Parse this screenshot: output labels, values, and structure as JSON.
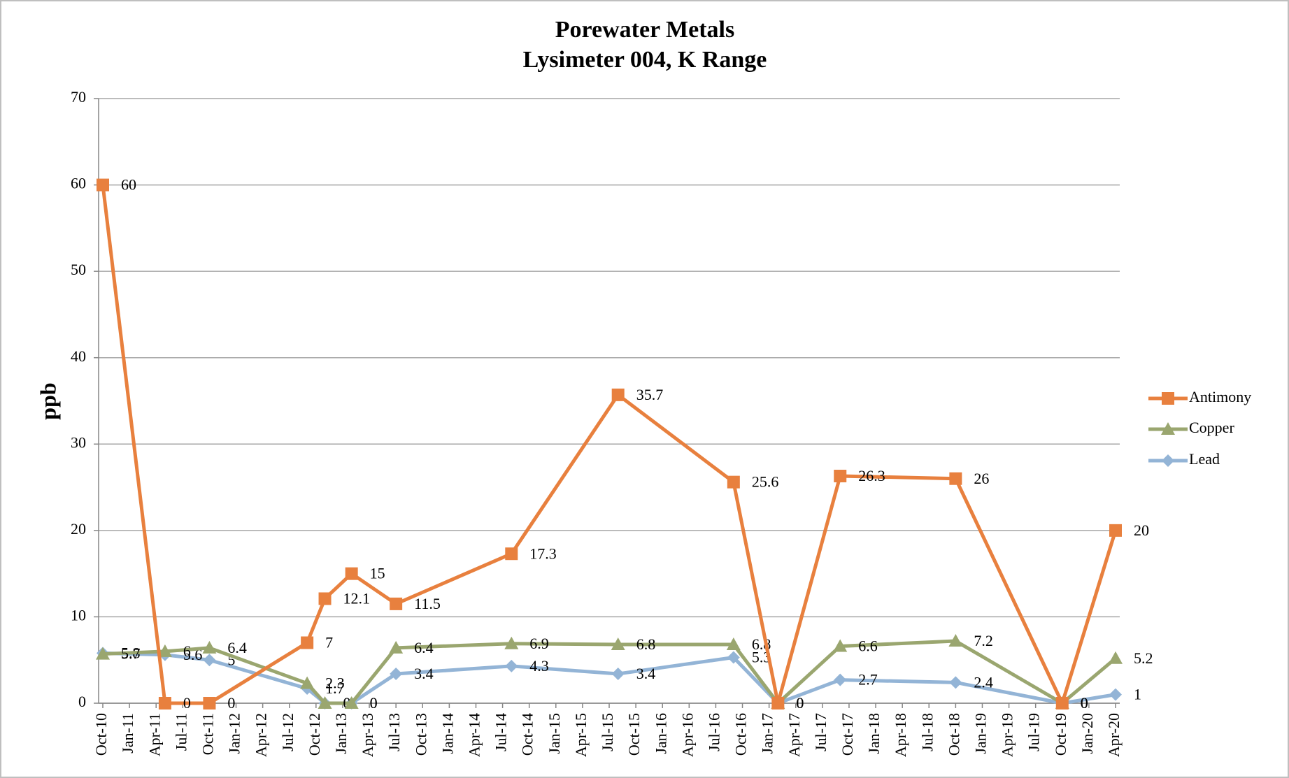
{
  "chart_data": {
    "type": "line",
    "title": [
      "Porewater Metals",
      "Lysimeter 004, K Range"
    ],
    "y_label": "ppb",
    "x": [
      "2010-10",
      "2011-05",
      "2011-10",
      "2012-09",
      "2012-11",
      "2013-02",
      "2013-07",
      "2014-08",
      "2015-08",
      "2016-09",
      "2017-02",
      "2017-09",
      "2018-10",
      "2019-10",
      "2020-04"
    ],
    "series": [
      {
        "name": "Antimony",
        "color": "#e8803e",
        "marker": "square",
        "values": [
          60,
          0,
          0,
          7,
          12.1,
          15,
          11.5,
          17.3,
          35.7,
          25.6,
          0,
          26.3,
          26,
          0,
          20
        ]
      },
      {
        "name": "Copper",
        "color": "#9aa66f",
        "marker": "triangle",
        "values": [
          5.7,
          6,
          6.4,
          2.3,
          0,
          0,
          6.4,
          6.9,
          6.8,
          6.8,
          0,
          6.6,
          7.2,
          0,
          5.2
        ]
      },
      {
        "name": "Lead",
        "color": "#93b4d6",
        "marker": "diamond",
        "values": [
          5.8,
          5.6,
          5,
          1.7,
          0,
          0,
          3.4,
          4.3,
          3.4,
          5.3,
          0,
          2.7,
          2.4,
          0,
          1
        ]
      }
    ],
    "xlim": [
      "2010-10",
      "2020-04"
    ],
    "xticks": [
      {
        "value": "2010-10",
        "label": "Oct-10"
      },
      {
        "value": "2011-01",
        "label": "Jan-11"
      },
      {
        "value": "2011-04",
        "label": "Apr-11"
      },
      {
        "value": "2011-07",
        "label": "Jul-11"
      },
      {
        "value": "2011-10",
        "label": "Oct-11"
      },
      {
        "value": "2012-01",
        "label": "Jan-12"
      },
      {
        "value": "2012-04",
        "label": "Apr-12"
      },
      {
        "value": "2012-07",
        "label": "Jul-12"
      },
      {
        "value": "2012-10",
        "label": "Oct-12"
      },
      {
        "value": "2013-01",
        "label": "Jan-13"
      },
      {
        "value": "2013-04",
        "label": "Apr-13"
      },
      {
        "value": "2013-07",
        "label": "Jul-13"
      },
      {
        "value": "2013-10",
        "label": "Oct-13"
      },
      {
        "value": "2014-01",
        "label": "Jan-14"
      },
      {
        "value": "2014-04",
        "label": "Apr-14"
      },
      {
        "value": "2014-07",
        "label": "Jul-14"
      },
      {
        "value": "2014-10",
        "label": "Oct-14"
      },
      {
        "value": "2015-01",
        "label": "Jan-15"
      },
      {
        "value": "2015-04",
        "label": "Apr-15"
      },
      {
        "value": "2015-07",
        "label": "Jul-15"
      },
      {
        "value": "2015-10",
        "label": "Oct-15"
      },
      {
        "value": "2016-01",
        "label": "Jan-16"
      },
      {
        "value": "2016-04",
        "label": "Apr-16"
      },
      {
        "value": "2016-07",
        "label": "Jul-16"
      },
      {
        "value": "2016-10",
        "label": "Oct-16"
      },
      {
        "value": "2017-01",
        "label": "Jan-17"
      },
      {
        "value": "2017-04",
        "label": "Apr-17"
      },
      {
        "value": "2017-07",
        "label": "Jul-17"
      },
      {
        "value": "2017-10",
        "label": "Oct-17"
      },
      {
        "value": "2018-01",
        "label": "Jan-18"
      },
      {
        "value": "2018-04",
        "label": "Apr-18"
      },
      {
        "value": "2018-07",
        "label": "Jul-18"
      },
      {
        "value": "2018-10",
        "label": "Oct-18"
      },
      {
        "value": "2019-01",
        "label": "Jan-19"
      },
      {
        "value": "2019-04",
        "label": "Apr-19"
      },
      {
        "value": "2019-07",
        "label": "Jul-19"
      },
      {
        "value": "2019-10",
        "label": "Oct-19"
      },
      {
        "value": "2020-01",
        "label": "Jan-20"
      },
      {
        "value": "2020-04",
        "label": "Apr-20"
      }
    ],
    "ylim": [
      0,
      70
    ],
    "yticks": [
      0,
      10,
      20,
      30,
      40,
      50,
      60,
      70
    ],
    "grid": true,
    "legend": "right"
  }
}
